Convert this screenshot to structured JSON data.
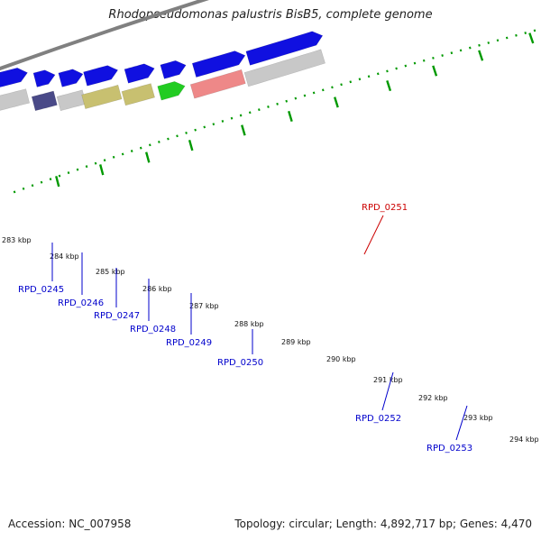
{
  "title": "Rhodopseudomonas palustris BisB5, complete genome",
  "footer": {
    "accession": "Accession: NC_007958",
    "stats": "Topology: circular; Length: 4,892,717 bp; Genes: 4,470"
  },
  "colors": {
    "backbone": "#808080",
    "ticks": "#009900",
    "label_blue": "#0000cc",
    "label_red": "#cc0000"
  },
  "kbp_labels": [
    "283 kbp",
    "284 kbp",
    "285 kbp",
    "286 kbp",
    "287 kbp",
    "288 kbp",
    "289 kbp",
    "290 kbp",
    "291 kbp",
    "292 kbp",
    "293 kbp",
    "294 kbp"
  ],
  "gene_labels": [
    "RPD_0245",
    "RPD_0246",
    "RPD_0247",
    "RPD_0248",
    "RPD_0249",
    "RPD_0250",
    "RPD_0251",
    "RPD_0252",
    "RPD_0253"
  ]
}
